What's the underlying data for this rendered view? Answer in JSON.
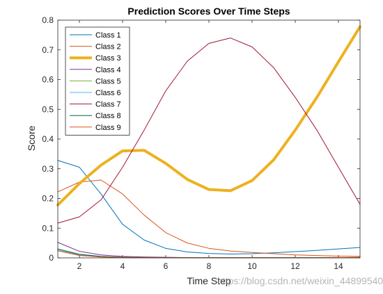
{
  "watermark": "https://blog.csdn.net/weixin_44899540",
  "chart_data": {
    "type": "line",
    "title": "Prediction Scores Over Time Steps",
    "xlabel": "Time Step",
    "ylabel": "Score",
    "xlim": [
      1,
      15
    ],
    "ylim": [
      0,
      0.8
    ],
    "xticks": [
      2,
      4,
      6,
      8,
      10,
      12,
      14
    ],
    "yticks": [
      0,
      0.1,
      0.2,
      0.3,
      0.4,
      0.5,
      0.6,
      0.7,
      0.8
    ],
    "grid": false,
    "legend_position": "top-left",
    "x": [
      1,
      2,
      3,
      4,
      5,
      6,
      7,
      8,
      9,
      10,
      11,
      12,
      13,
      14,
      15
    ],
    "series": [
      {
        "name": "Class 1",
        "color": "#0072BD",
        "width": 1,
        "values": [
          0.328,
          0.305,
          0.215,
          0.113,
          0.06,
          0.032,
          0.02,
          0.015,
          0.013,
          0.014,
          0.017,
          0.021,
          0.025,
          0.03,
          0.035
        ]
      },
      {
        "name": "Class 2",
        "color": "#D95319",
        "width": 1,
        "values": [
          0.222,
          0.255,
          0.262,
          0.215,
          0.144,
          0.085,
          0.05,
          0.032,
          0.023,
          0.018,
          0.014,
          0.01,
          0.008,
          0.006,
          0.005
        ]
      },
      {
        "name": "Class 3",
        "color": "#EDB120",
        "width": 4,
        "values": [
          0.178,
          0.25,
          0.312,
          0.36,
          0.362,
          0.318,
          0.264,
          0.23,
          0.226,
          0.26,
          0.33,
          0.43,
          0.54,
          0.66,
          0.778
        ]
      },
      {
        "name": "Class 4",
        "color": "#7E2F8E",
        "width": 1,
        "values": [
          0.052,
          0.022,
          0.01,
          0.005,
          0.003,
          0.002,
          0.001,
          0.001,
          0.001,
          0.001,
          0.001,
          0.001,
          0.001,
          0.001,
          0.001
        ]
      },
      {
        "name": "Class 5",
        "color": "#77AC30",
        "width": 1,
        "values": [
          0.03,
          0.01,
          0.004,
          0.002,
          0.001,
          0.001,
          0.0005,
          0.0005,
          0.0005,
          0.0005,
          0.0005,
          0.0005,
          0.0005,
          0.0005,
          0.0005
        ]
      },
      {
        "name": "Class 6",
        "color": "#4DBEEE",
        "width": 1,
        "values": [
          0.026,
          0.009,
          0.003,
          0.001,
          0.001,
          0.0005,
          0.0005,
          0.0005,
          0.0005,
          0.0005,
          0.0005,
          0.0005,
          0.0005,
          0.0005,
          0.0005
        ]
      },
      {
        "name": "Class 7",
        "color": "#A2142F",
        "width": 1,
        "values": [
          0.117,
          0.138,
          0.195,
          0.305,
          0.43,
          0.562,
          0.662,
          0.722,
          0.74,
          0.71,
          0.64,
          0.54,
          0.43,
          0.305,
          0.18
        ]
      },
      {
        "name": "Class 8",
        "color": "#006450",
        "width": 1,
        "values": [
          0.03,
          0.012,
          0.005,
          0.002,
          0.001,
          0.001,
          0.0005,
          0.0005,
          0.0005,
          0.0005,
          0.0005,
          0.0005,
          0.0005,
          0.0005,
          0.0005
        ]
      },
      {
        "name": "Class 9",
        "color": "#E0531E",
        "width": 1,
        "values": [
          0.024,
          0.008,
          0.003,
          0.001,
          0.001,
          0.0005,
          0.0005,
          0.0005,
          0.0005,
          0.0005,
          0.0005,
          0.0005,
          0.0005,
          0.001,
          0.002
        ]
      }
    ]
  }
}
